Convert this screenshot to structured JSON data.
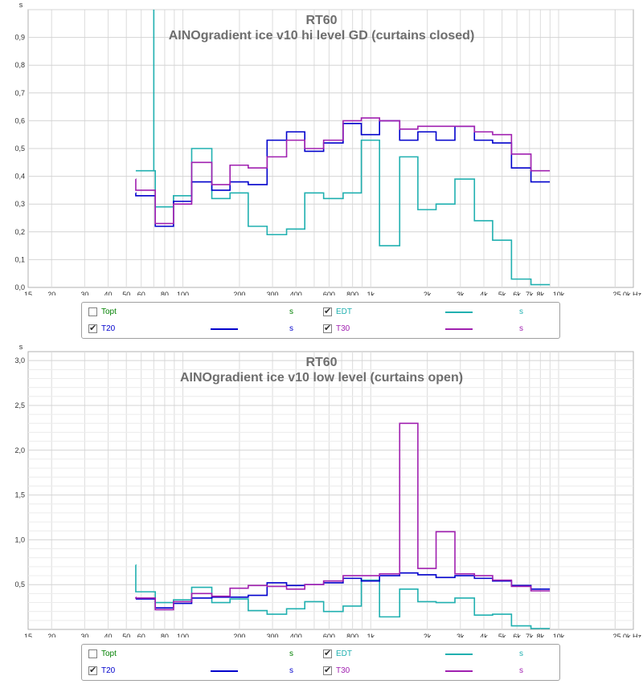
{
  "charts": [
    {
      "id": "top",
      "title": "RT60",
      "subtitle": "AINOgradient ice v10 hi level GD (curtains closed)",
      "y_unit": "s",
      "x_unit": "25,0k Hz",
      "y_ticks": [
        "0,0",
        "0,1",
        "0,2",
        "0,3",
        "0,4",
        "0,5",
        "0,6",
        "0,7",
        "0,8",
        "0,9"
      ],
      "legend": [
        {
          "name": "Topt",
          "checked": false,
          "unit": "s",
          "color": "#008000",
          "swatch": false
        },
        {
          "name": "EDT",
          "checked": true,
          "unit": "s",
          "color": "#20b0b0",
          "swatch": true
        },
        {
          "name": "T20",
          "checked": true,
          "unit": "s",
          "color": "#0000cc",
          "swatch": true
        },
        {
          "name": "T30",
          "checked": true,
          "unit": "s",
          "color": "#a020b0",
          "swatch": true
        }
      ]
    },
    {
      "id": "bottom",
      "title": "RT60",
      "subtitle": "AINOgradient ice v10 low level (curtains open)",
      "y_unit": "s",
      "x_unit": "25,0k Hz",
      "y_ticks": [
        "0,5",
        "1,0",
        "1,5",
        "2,0",
        "2,5",
        "3,0"
      ],
      "legend": [
        {
          "name": "Topt",
          "checked": false,
          "unit": "s",
          "color": "#008000",
          "swatch": false
        },
        {
          "name": "EDT",
          "checked": true,
          "unit": "s",
          "color": "#20b0b0",
          "swatch": true
        },
        {
          "name": "T20",
          "checked": true,
          "unit": "s",
          "color": "#0000cc",
          "swatch": true
        },
        {
          "name": "T30",
          "checked": true,
          "unit": "s",
          "color": "#a020b0",
          "swatch": true
        }
      ]
    }
  ],
  "chart_data": [
    {
      "type": "line",
      "title": "RT60",
      "subtitle": "AINOgradient ice v10 hi level GD (curtains closed)",
      "xlabel": "Hz",
      "ylabel": "s",
      "x_scale": "log",
      "xlim": [
        15,
        25000
      ],
      "ylim": [
        0,
        1.0
      ],
      "grid": true,
      "x_tick_labels": [
        "15",
        "20",
        "30",
        "40",
        "50",
        "60",
        "80",
        "100",
        "200",
        "300",
        "400",
        "600",
        "800",
        "1k",
        "2k",
        "3k",
        "4k",
        "5k",
        "6k",
        "7k",
        "8k",
        "10k",
        "25,0k Hz"
      ],
      "x_ticks": [
        15,
        20,
        30,
        40,
        50,
        60,
        80,
        100,
        200,
        300,
        400,
        600,
        800,
        1000,
        2000,
        3000,
        4000,
        5000,
        6000,
        7000,
        8000,
        10000
      ],
      "x": [
        63,
        80,
        100,
        125,
        160,
        200,
        250,
        315,
        400,
        500,
        630,
        800,
        1000,
        1250,
        1600,
        2000,
        2500,
        3150,
        4000,
        5000,
        6300,
        8000,
        10000
      ],
      "series": [
        {
          "name": "EDT",
          "color": "#20b0b0",
          "values": [
            0.42,
            0.29,
            0.33,
            0.5,
            0.32,
            0.34,
            0.22,
            0.19,
            0.21,
            0.34,
            0.32,
            0.34,
            0.53,
            0.15,
            0.47,
            0.28,
            0.3,
            0.39,
            0.24,
            0.17,
            0.03,
            0.01,
            null
          ],
          "spike": {
            "x": 70,
            "from": 0.42,
            "to": 1.0
          }
        },
        {
          "name": "T20",
          "color": "#0000cc",
          "values": [
            0.33,
            0.22,
            0.31,
            0.38,
            0.35,
            0.38,
            0.37,
            0.53,
            0.56,
            0.49,
            0.52,
            0.59,
            0.55,
            0.6,
            0.53,
            0.56,
            0.53,
            0.58,
            0.53,
            0.52,
            0.43,
            0.38,
            null
          ]
        },
        {
          "name": "T30",
          "color": "#a020b0",
          "values": [
            0.35,
            0.23,
            0.3,
            0.45,
            0.37,
            0.44,
            0.43,
            0.47,
            0.53,
            0.5,
            0.53,
            0.6,
            0.61,
            0.6,
            0.57,
            0.58,
            0.58,
            0.58,
            0.56,
            0.55,
            0.48,
            0.42,
            null
          ]
        }
      ],
      "pre": {
        "EDT": null,
        "T20": 0.34,
        "T30": 0.39
      }
    },
    {
      "type": "line",
      "title": "RT60",
      "subtitle": "AINOgradient ice v10 low level (curtains open)",
      "xlabel": "Hz",
      "ylabel": "s",
      "x_scale": "log",
      "xlim": [
        15,
        25000
      ],
      "ylim": [
        0,
        3.1
      ],
      "grid": true,
      "x_tick_labels": [
        "15",
        "20",
        "30",
        "40",
        "50",
        "60",
        "80",
        "100",
        "200",
        "300",
        "400",
        "600",
        "800",
        "1k",
        "2k",
        "3k",
        "4k",
        "5k",
        "6k",
        "7k",
        "8k",
        "10k",
        "25,0k Hz"
      ],
      "x_ticks": [
        15,
        20,
        30,
        40,
        50,
        60,
        80,
        100,
        200,
        300,
        400,
        600,
        800,
        1000,
        2000,
        3000,
        4000,
        5000,
        6000,
        7000,
        8000,
        10000
      ],
      "x": [
        63,
        80,
        100,
        125,
        160,
        200,
        250,
        315,
        400,
        500,
        630,
        800,
        1000,
        1250,
        1600,
        2000,
        2500,
        3150,
        4000,
        5000,
        6300,
        8000,
        10000
      ],
      "series": [
        {
          "name": "EDT",
          "color": "#20b0b0",
          "values": [
            0.42,
            0.3,
            0.33,
            0.47,
            0.3,
            0.34,
            0.21,
            0.17,
            0.23,
            0.31,
            0.2,
            0.26,
            0.55,
            0.14,
            0.45,
            0.31,
            0.3,
            0.35,
            0.16,
            0.17,
            0.04,
            0.01,
            null
          ]
        },
        {
          "name": "T20",
          "color": "#0000cc",
          "values": [
            0.34,
            0.24,
            0.29,
            0.35,
            0.36,
            0.36,
            0.38,
            0.52,
            0.49,
            0.5,
            0.52,
            0.57,
            0.54,
            0.6,
            0.63,
            0.61,
            0.58,
            0.6,
            0.57,
            0.54,
            0.49,
            0.45,
            null
          ]
        },
        {
          "name": "T30",
          "color": "#a020b0",
          "values": [
            0.35,
            0.22,
            0.31,
            0.4,
            0.37,
            0.46,
            0.49,
            0.48,
            0.45,
            0.5,
            0.54,
            0.6,
            0.6,
            0.62,
            2.3,
            0.68,
            1.09,
            0.62,
            0.6,
            0.55,
            0.48,
            0.43,
            null
          ]
        }
      ],
      "pre": {
        "EDT": 0.72,
        "T20": 0.34,
        "T30": 0.36
      }
    }
  ]
}
